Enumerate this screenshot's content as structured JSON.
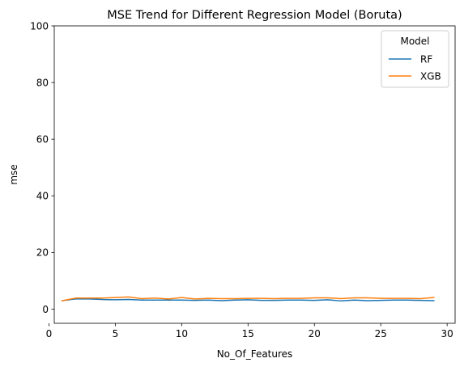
{
  "chart_data": {
    "type": "line",
    "title": "MSE Trend for Different Regression Model (Boruta)",
    "xlabel": "No_Of_Features",
    "ylabel": "mse",
    "xlim": [
      0.4,
      30.6
    ],
    "ylim": [
      -5,
      100
    ],
    "xticks": [
      0,
      5,
      10,
      15,
      20,
      25,
      30
    ],
    "yticks": [
      0,
      20,
      40,
      60,
      80,
      100
    ],
    "grid": false,
    "legend": {
      "title": "Model",
      "placement": "top-right"
    },
    "x": [
      1,
      2,
      3,
      4,
      5,
      6,
      7,
      8,
      9,
      10,
      11,
      12,
      13,
      14,
      15,
      16,
      17,
      18,
      19,
      20,
      21,
      22,
      23,
      24,
      25,
      26,
      27,
      28,
      29
    ],
    "series": [
      {
        "name": "RF",
        "color": "#1f77b4",
        "values": [
          3.0,
          3.6,
          3.6,
          3.4,
          3.3,
          3.4,
          3.2,
          3.2,
          3.2,
          3.2,
          3.1,
          3.2,
          3.0,
          3.2,
          3.3,
          3.1,
          3.1,
          3.2,
          3.2,
          3.1,
          3.3,
          2.9,
          3.2,
          3.0,
          3.1,
          3.2,
          3.2,
          3.1,
          3.0
        ]
      },
      {
        "name": "XGB",
        "color": "#ff7f0e",
        "values": [
          3.0,
          3.9,
          3.9,
          3.9,
          4.1,
          4.3,
          3.7,
          3.9,
          3.6,
          4.1,
          3.6,
          3.8,
          3.7,
          3.7,
          3.8,
          3.8,
          3.7,
          3.8,
          3.8,
          4.0,
          4.0,
          3.7,
          4.0,
          4.0,
          3.8,
          3.8,
          3.8,
          3.7,
          4.1
        ]
      }
    ]
  }
}
